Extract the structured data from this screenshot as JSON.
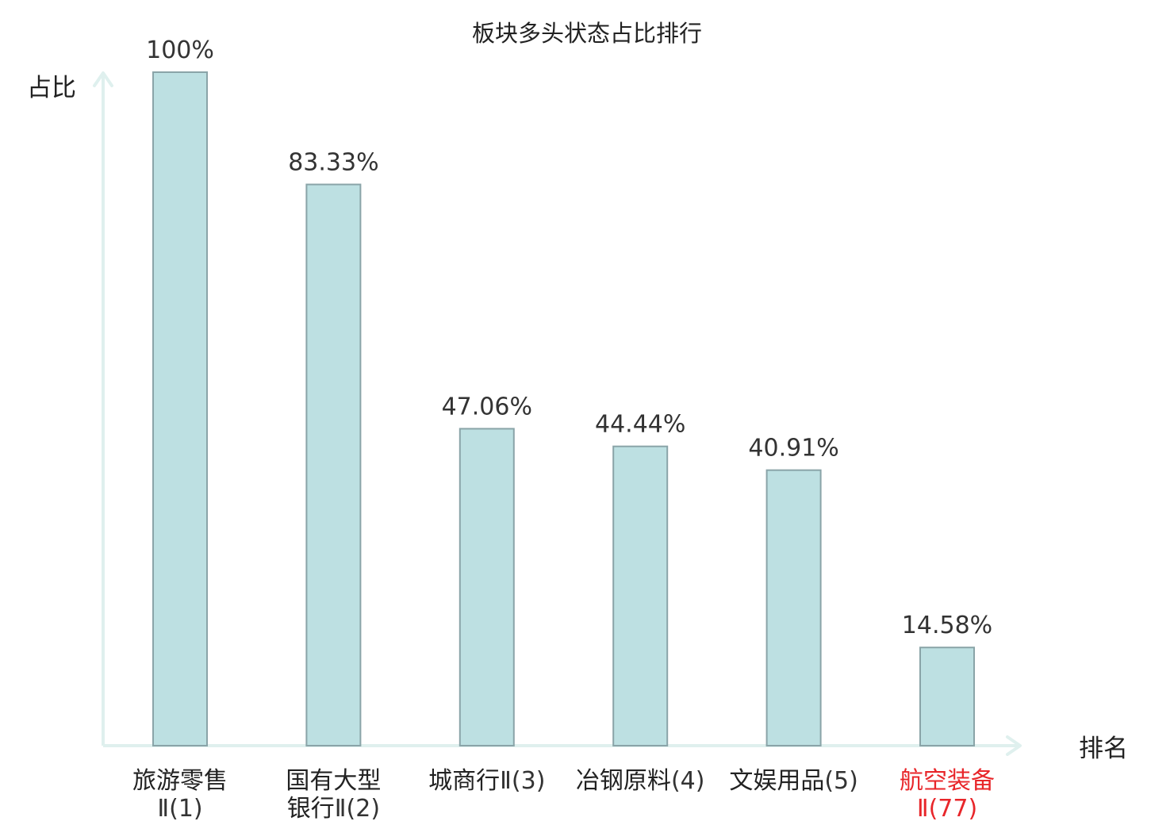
{
  "chart_data": {
    "type": "bar",
    "title": "板块多头状态占比排行",
    "ylabel": "占比",
    "xlabel": "排名",
    "ylim": [
      0,
      100
    ],
    "grid": false,
    "unit": "%",
    "categories": [
      {
        "lines": [
          [
            {
              "text": "旅游零售",
              "muted": false
            }
          ],
          [
            {
              "text": "Ⅱ(1)",
              "muted": true
            }
          ]
        ],
        "highlight": false
      },
      {
        "lines": [
          [
            {
              "text": "国有大型",
              "muted": false
            }
          ],
          [
            {
              "text": "银行",
              "muted": false
            },
            {
              "text": "Ⅱ(2)",
              "muted": true
            }
          ]
        ],
        "highlight": false
      },
      {
        "lines": [
          [
            {
              "text": "城商行",
              "muted": false
            },
            {
              "text": "Ⅱ(3)",
              "muted": true
            }
          ]
        ],
        "highlight": false
      },
      {
        "lines": [
          [
            {
              "text": "冶钢原料",
              "muted": false
            },
            {
              "text": "(4)",
              "muted": true
            }
          ]
        ],
        "highlight": false
      },
      {
        "lines": [
          [
            {
              "text": "文娱用品",
              "muted": false
            },
            {
              "text": "(5)",
              "muted": true
            }
          ]
        ],
        "highlight": false
      },
      {
        "lines": [
          [
            {
              "text": "航空装备",
              "muted": false
            }
          ],
          [
            {
              "text": "Ⅱ(77)",
              "muted": true
            }
          ]
        ],
        "highlight": true
      }
    ],
    "values": [
      100,
      83.33,
      47.06,
      44.44,
      40.91,
      14.58
    ],
    "value_labels": [
      "100%",
      "83.33%",
      "47.06%",
      "44.44%",
      "40.91%",
      "14.58%"
    ]
  },
  "colors": {
    "bar_fill": "#bde0e2",
    "bar_stroke": "#8aa4a8",
    "axis": "#dff0ee",
    "highlight": "#e8262a",
    "text": "#222222"
  }
}
